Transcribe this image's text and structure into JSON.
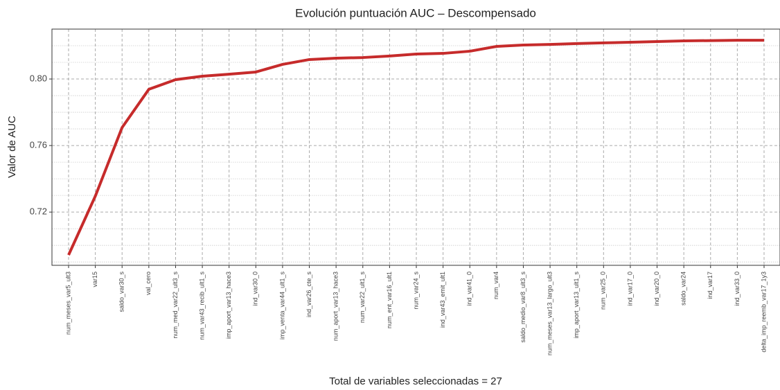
{
  "chart_data": {
    "type": "line",
    "title": "Evolución puntuación AUC –  Descompensado",
    "x_label": "Total de variables seleccionadas =  27",
    "y_label": "Valor de AUC",
    "categories": [
      "num_meses_var5_ult3",
      "var15",
      "saldo_var30_s",
      "val_cero",
      "num_med_var22_ult3_s",
      "num_var43_recib_ult1_s",
      "imp_aport_var13_hace3",
      "ind_var30_0",
      "imp_venta_var44_ult1_s",
      "ind_var26_cte_s",
      "num_aport_var13_hace3",
      "num_var22_ult1_s",
      "num_ent_var16_ult1",
      "num_var24_s",
      "ind_var43_emit_ult1",
      "ind_var41_0",
      "num_var4",
      "saldo_medio_var8_ult3_s",
      "num_meses_var13_largo_ult3",
      "imp_aport_var13_ult1_s",
      "num_var25_0",
      "ind_var17_0",
      "ind_var20_0",
      "saldo_var24",
      "ind_var17",
      "ind_var33_0",
      "delta_imp_reemb_var17_1y3"
    ],
    "series": [
      {
        "name": "AUC",
        "color": "#c62b2b",
        "values": [
          0.6942,
          0.7296,
          0.7708,
          0.7938,
          0.7996,
          0.8017,
          0.8029,
          0.8042,
          0.8088,
          0.8117,
          0.8125,
          0.8129,
          0.8138,
          0.815,
          0.8154,
          0.8167,
          0.8196,
          0.8204,
          0.8208,
          0.8213,
          0.8217,
          0.8221,
          0.8225,
          0.8229,
          0.8231,
          0.8233,
          0.8233
        ]
      }
    ],
    "ylim": [
      0.688,
      0.83
    ],
    "yticks": [
      {
        "value": 0.72,
        "label": "0.72"
      },
      {
        "value": 0.76,
        "label": "0.76"
      },
      {
        "value": 0.8,
        "label": "0.80"
      }
    ],
    "y_minor_ticks": [
      0.69,
      0.7,
      0.71,
      0.73,
      0.74,
      0.75,
      0.77,
      0.78,
      0.79,
      0.81,
      0.82,
      0.83
    ],
    "grid": true
  }
}
